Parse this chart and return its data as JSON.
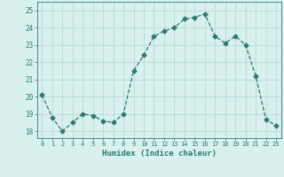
{
  "x": [
    0,
    1,
    2,
    3,
    4,
    5,
    6,
    7,
    8,
    9,
    10,
    11,
    12,
    13,
    14,
    15,
    16,
    17,
    18,
    19,
    20,
    21,
    22,
    23
  ],
  "y": [
    20.1,
    18.8,
    18.0,
    18.5,
    19.0,
    18.9,
    18.6,
    18.5,
    19.0,
    21.5,
    22.4,
    23.5,
    23.8,
    24.0,
    24.5,
    24.6,
    24.8,
    23.5,
    23.1,
    23.5,
    23.0,
    21.2,
    18.7,
    18.3
  ],
  "line_color": "#2d7a6e",
  "marker": "D",
  "marker_size": 2.5,
  "bg_color": "#d8f0ee",
  "grid_color": "#b8dbd8",
  "xlabel": "Humidex (Indice chaleur)",
  "xlabel_color": "#2d7a6e",
  "ylabel_ticks": [
    18,
    19,
    20,
    21,
    22,
    23,
    24,
    25
  ],
  "xlim": [
    -0.5,
    23.5
  ],
  "ylim": [
    17.6,
    25.5
  ]
}
